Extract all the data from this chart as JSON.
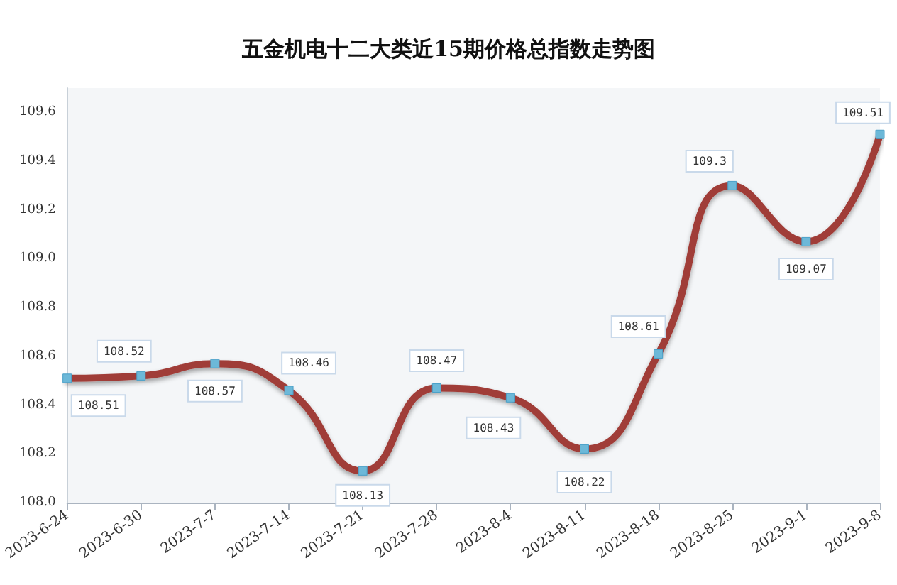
{
  "chart_data": {
    "type": "line",
    "title": "五金机电十二大类近15期价格总指数走势图",
    "categories": [
      "2023-6-24",
      "2023-6-30",
      "2023-7-7",
      "2023-7-14",
      "2023-7-21",
      "2023-7-28",
      "2023-8-4",
      "2023-8-11",
      "2023-8-18",
      "2023-8-25",
      "2023-9-1",
      "2023-9-8"
    ],
    "series": [
      {
        "color": "#a03c37",
        "values": [
          108.51,
          108.52,
          108.57,
          108.46,
          108.13,
          108.47,
          108.43,
          108.22,
          108.61,
          109.3,
          109.07,
          109.51
        ]
      }
    ],
    "ylim": [
      108.0,
      109.7
    ],
    "yticks": [
      {
        "value": 108.0,
        "label": "108.0"
      },
      {
        "value": 108.2,
        "label": "108.2"
      },
      {
        "value": 108.4,
        "label": "108.4"
      },
      {
        "value": 108.6,
        "label": "108.6"
      },
      {
        "value": 108.8,
        "label": "108.8"
      },
      {
        "value": 109.0,
        "label": "109.0"
      },
      {
        "value": 109.2,
        "label": "109.2"
      },
      {
        "value": 109.4,
        "label": "109.4"
      },
      {
        "value": 109.6,
        "label": "109.6"
      }
    ],
    "data_labels": true,
    "grid": false,
    "marker": "square",
    "line_style": "solid"
  }
}
